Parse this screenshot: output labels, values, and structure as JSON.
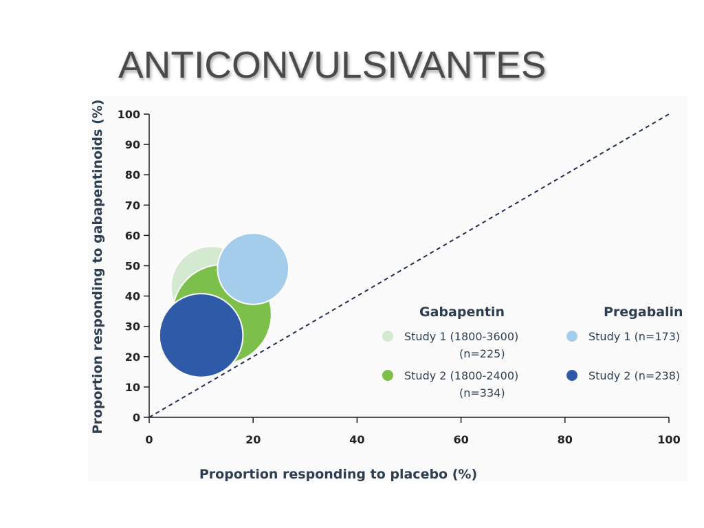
{
  "slide": {
    "title": "ANTICONVULSIVANTES"
  },
  "chart_data": {
    "type": "scatter",
    "xlabel": "Proportion responding to placebo (%)",
    "ylabel": "Proportion responding to gabapentinoids (%)",
    "xlim": [
      0,
      100
    ],
    "ylim": [
      0,
      100
    ],
    "x_ticks": [
      "0",
      "20",
      "40",
      "60",
      "80",
      "100"
    ],
    "y_ticks": [
      "0",
      "10",
      "20",
      "30",
      "40",
      "50",
      "60",
      "70",
      "80",
      "90",
      "100"
    ],
    "reference_line": {
      "from": [
        0,
        0
      ],
      "to": [
        100,
        100
      ],
      "style": "dashed"
    },
    "grid": false,
    "legend_placement": "bottom-right",
    "groups": [
      {
        "name": "Gabapentin",
        "series": [
          {
            "name": "Study 1 (1800-3600)",
            "n_label": "(n=225)",
            "n": 225,
            "x": 12,
            "y": 43,
            "color": "#d4ead0"
          },
          {
            "name": "Study 2 (1800-2400)",
            "n_label": "(n=334)",
            "n": 334,
            "x": 14,
            "y": 34,
            "color": "#7cc04b"
          }
        ]
      },
      {
        "name": "Pregabalin",
        "series": [
          {
            "name": "Study 1 (n=173)",
            "n_label": "",
            "n": 173,
            "x": 20,
            "y": 49,
            "color": "#a3cdea"
          },
          {
            "name": "Study 2  (n=238)",
            "n_label": "",
            "n": 238,
            "x": 10,
            "y": 27,
            "color": "#2e5aa8"
          }
        ]
      }
    ]
  }
}
